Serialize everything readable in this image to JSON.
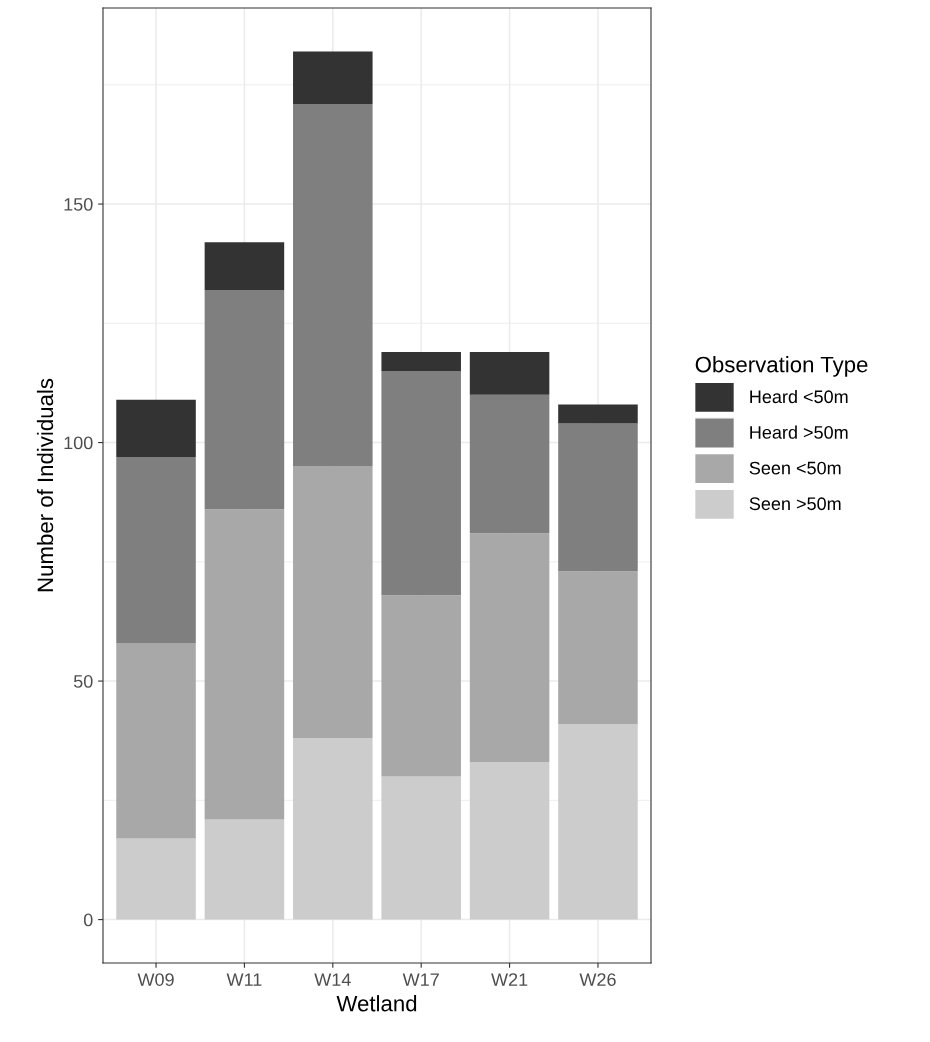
{
  "chart_data": {
    "type": "bar",
    "stacked": true,
    "xlabel": "Wetland",
    "ylabel": "Number of Individuals",
    "legend_title": "Observation Type",
    "legend": "right",
    "grid": true,
    "categories": [
      "W09",
      "W11",
      "W14",
      "W17",
      "W21",
      "W26"
    ],
    "ylim": [
      -9.1,
      191.1
    ],
    "yticks": [
      0,
      50,
      100,
      150
    ],
    "series": [
      {
        "name": "Seen >50m",
        "color": "#cccccc",
        "values": [
          17,
          21,
          38,
          30,
          33,
          41
        ]
      },
      {
        "name": "Seen <50m",
        "color": "#a8a8a8",
        "values": [
          41,
          65,
          57,
          38,
          48,
          32
        ]
      },
      {
        "name": "Heard >50m",
        "color": "#7f7f7f",
        "values": [
          39,
          46,
          76,
          47,
          29,
          31
        ]
      },
      {
        "name": "Heard <50m",
        "color": "#333333",
        "values": [
          12,
          10,
          11,
          4,
          9,
          4
        ]
      }
    ]
  }
}
